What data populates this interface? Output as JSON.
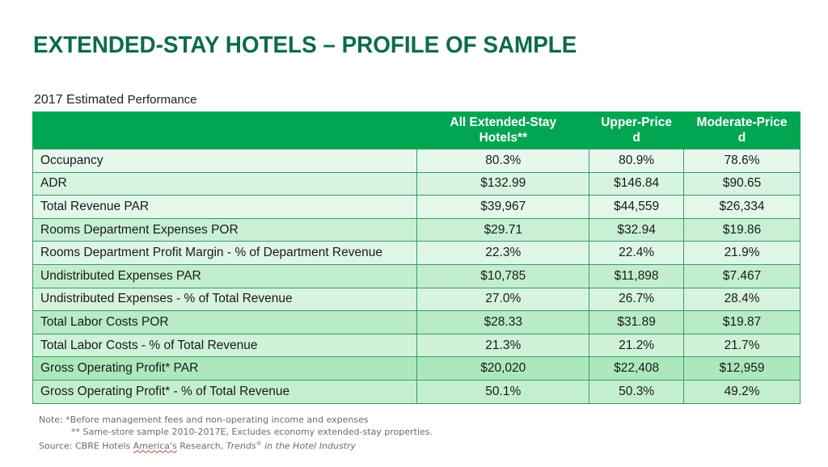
{
  "slide": {
    "title": "EXTENDED-STAY HOTELS – PROFILE OF SAMPLE",
    "subtitle_main": "2017 Estimated",
    "subtitle_small": "Performance"
  },
  "table": {
    "header_color": "#00a651",
    "columns": [
      {
        "label": ""
      },
      {
        "label_line1": "All Extended-Stay",
        "label_line2": "Hotels**"
      },
      {
        "label_line1": "Upper-Price",
        "label_line2": "d"
      },
      {
        "label_line1": "Moderate-Price",
        "label_line2": "d"
      }
    ],
    "rows": [
      {
        "label": "Occupancy",
        "all": "80.3%",
        "upper": "80.9%",
        "moderate": "78.6%",
        "bg": "#e6f8ec"
      },
      {
        "label": "ADR",
        "all": "$132.99",
        "upper": "$146.84",
        "moderate": "$90.65",
        "bg": "#d6f4e0"
      },
      {
        "label": "Total Revenue PAR",
        "all": "$39,967",
        "upper": "$44,559",
        "moderate": "$26,334",
        "bg": "#e4f8ea"
      },
      {
        "label": "Rooms Department Expenses POR",
        "all": "$29.71",
        "upper": "$32.94",
        "moderate": "$19.86",
        "bg": "#c9f0d5"
      },
      {
        "label": "Rooms Department Profit Margin - % of Department Revenue",
        "all": "22.3%",
        "upper": "22.4%",
        "moderate": "21.9%",
        "bg": "#def6e5"
      },
      {
        "label": "Undistributed Expenses PAR",
        "all": "$10,785",
        "upper": "$11,898",
        "moderate": "$7.467",
        "bg": "#c2eecf"
      },
      {
        "label": "Undistributed Expenses - % of Total Revenue",
        "all": "27.0%",
        "upper": "26.7%",
        "moderate": "28.4%",
        "bg": "#d6f4de"
      },
      {
        "label": "Total Labor Costs POR",
        "all": "$28.33",
        "upper": "$31.89",
        "moderate": "$19.87",
        "bg": "#b8ebc6"
      },
      {
        "label": "Total Labor Costs - % of Total Revenue",
        "all": "21.3%",
        "upper": "21.2%",
        "moderate": "21.7%",
        "bg": "#cff2d8"
      },
      {
        "label": "Gross Operating Profit* PAR",
        "all": "$20,020",
        "upper": "$22,408",
        "moderate": "$12,959",
        "bg": "#ade8bd"
      },
      {
        "label": "Gross Operating Profit* - % of Total Revenue",
        "all": "50.1%",
        "upper": "50.3%",
        "moderate": "49.2%",
        "bg": "#c4efcf"
      }
    ]
  },
  "notes": {
    "line1": "Note: *Before management fees and non-operating income and expenses",
    "line2": "** Same-store sample 2010-2017E, Excludes economy extended-stay properties.",
    "line3_prefix": "Source: CBRE Hotels ",
    "line3_underlined": "America's",
    "line3_mid": " Research, ",
    "line3_italic_1": "Trends",
    "line3_sup": "®",
    "line3_italic_2": " in the Hotel Industry"
  }
}
